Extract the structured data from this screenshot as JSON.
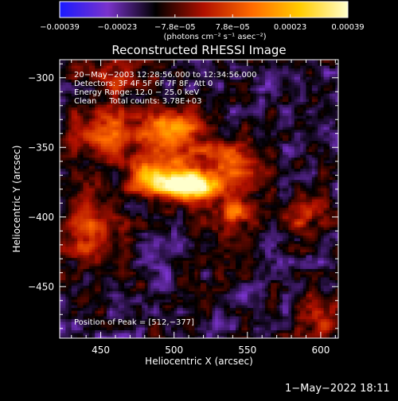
{
  "chart_data": {
    "type": "heatmap",
    "title": "Reconstructed RHESSI Image",
    "xlabel": "Heliocentric X (arcsec)",
    "ylabel": "Heliocentric Y (arcsec)",
    "xlim": [
      422,
      612
    ],
    "ylim": [
      -487,
      -287
    ],
    "x_ticks": [
      450,
      500,
      550,
      600
    ],
    "y_ticks": [
      -300,
      -350,
      -400,
      -450
    ],
    "x_tick_labels": [
      "450",
      "500",
      "550",
      "600"
    ],
    "y_tick_labels": [
      "−300",
      "−350",
      "−400",
      "−450"
    ],
    "colorbar": {
      "min": -0.00039,
      "max": 0.00039,
      "tick_labels": [
        "−0.00039",
        "−0.00023",
        "−7.8e−05",
        "7.8e−05",
        "0.00023",
        "0.00039"
      ],
      "units_text": "(photons cm⁻² s⁻¹ asec⁻²)",
      "colors": [
        "#1a1aff",
        "#7a33cc",
        "#000000",
        "#b01000",
        "#ff6a00",
        "#ffcc00",
        "#ffffcc"
      ]
    },
    "annotations": [
      "20−May−2003 12:28:56.000 to 12:34:56.000",
      "Detectors: 3F 4F 5F 6F 7F 8F, Att 0",
      "Energy Range: 12.0 − 25.0 keV",
      "Clean     Total counts: 3.78E+03"
    ],
    "peak_label": "Position of Peak = [512,−377]",
    "peak": {
      "x": 512,
      "y": -377
    },
    "sources": [
      {
        "x": 512,
        "y": -377,
        "amp": 1.0,
        "sx": 11,
        "sy": 7
      },
      {
        "x": 488,
        "y": -372,
        "amp": 0.75,
        "sx": 14,
        "sy": 9
      },
      {
        "x": 500,
        "y": -340,
        "amp": 0.55,
        "sx": 16,
        "sy": 14
      },
      {
        "x": 540,
        "y": -360,
        "amp": 0.45,
        "sx": 14,
        "sy": 12
      },
      {
        "x": 455,
        "y": -340,
        "amp": 0.45,
        "sx": 18,
        "sy": 12
      },
      {
        "x": 445,
        "y": -410,
        "amp": 0.4,
        "sx": 14,
        "sy": 18
      },
      {
        "x": 540,
        "y": -395,
        "amp": 0.4,
        "sx": 14,
        "sy": 12
      },
      {
        "x": 600,
        "y": -470,
        "amp": 0.35,
        "sx": 10,
        "sy": 12
      },
      {
        "x": 460,
        "y": -300,
        "amp": 0.35,
        "sx": 16,
        "sy": 8
      },
      {
        "x": 590,
        "y": -400,
        "amp": 0.25,
        "sx": 10,
        "sy": 12
      }
    ]
  },
  "footer_date": "1−May−2022 18:11"
}
